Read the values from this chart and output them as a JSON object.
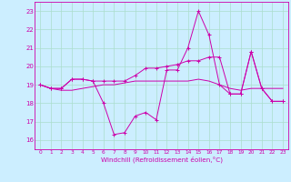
{
  "title": "",
  "xlabel": "Windchill (Refroidissement éolien,°C)",
  "ylabel": "",
  "background_color": "#cceeff",
  "grid_color": "#aaddcc",
  "line_color": "#cc00aa",
  "xlim": [
    -0.5,
    23.5
  ],
  "ylim": [
    15.5,
    23.5
  ],
  "yticks": [
    16,
    17,
    18,
    19,
    20,
    21,
    22,
    23
  ],
  "xticks": [
    0,
    1,
    2,
    3,
    4,
    5,
    6,
    7,
    8,
    9,
    10,
    11,
    12,
    13,
    14,
    15,
    16,
    17,
    18,
    19,
    20,
    21,
    22,
    23
  ],
  "series": [
    {
      "y": [
        19.0,
        18.8,
        18.8,
        19.3,
        19.3,
        19.2,
        18.0,
        16.3,
        16.4,
        17.3,
        17.5,
        17.1,
        19.8,
        19.8,
        21.0,
        23.0,
        21.7,
        19.0,
        18.5,
        18.5,
        20.8,
        18.8,
        18.1,
        18.1
      ],
      "marker": true
    },
    {
      "y": [
        19.0,
        18.8,
        18.7,
        18.7,
        18.8,
        18.9,
        19.0,
        19.0,
        19.1,
        19.2,
        19.2,
        19.2,
        19.2,
        19.2,
        19.2,
        19.3,
        19.2,
        19.0,
        18.8,
        18.7,
        18.8,
        18.8,
        18.8,
        18.8
      ],
      "marker": false
    },
    {
      "y": [
        19.0,
        18.8,
        18.8,
        19.3,
        19.3,
        19.2,
        19.2,
        19.2,
        19.2,
        19.5,
        19.9,
        19.9,
        20.0,
        20.1,
        20.3,
        20.3,
        20.5,
        20.5,
        18.5,
        18.5,
        20.8,
        18.8,
        18.1,
        18.1
      ],
      "marker": true
    }
  ]
}
